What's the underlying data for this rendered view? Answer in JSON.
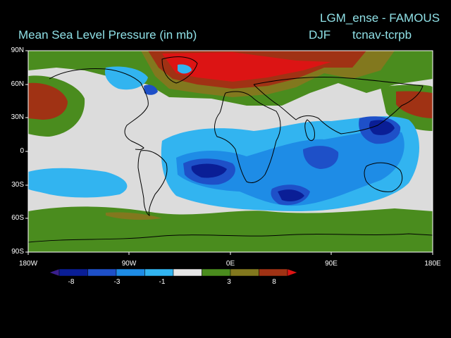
{
  "header": {
    "title": "Mean Sea Level Pressure (in mb)",
    "experiment": "LGM_ense - FAMOUS",
    "season": "DJF",
    "variable_code": "tcnav-tcrpb"
  },
  "axes": {
    "lat_ticks": [
      "90N",
      "60N",
      "30N",
      "0",
      "30S",
      "60S",
      "90S"
    ],
    "lon_ticks": [
      "180W",
      "90W",
      "0E",
      "90E",
      "180E"
    ]
  },
  "colorbar": {
    "labels": [
      "-8",
      "-3",
      "-1",
      "3",
      "8"
    ],
    "colors": [
      "#3a1e8c",
      "#0a1e96",
      "#1e50c8",
      "#1e8ce6",
      "#32b4f0",
      "#e6e6e6",
      "#4a8c1e",
      "#82781e",
      "#a03214",
      "#dc1414"
    ]
  },
  "colors": {
    "background": "#000000",
    "title": "#8fe0e6",
    "ocean_neutral": "#dcdcdc",
    "coastline": "#000000"
  }
}
